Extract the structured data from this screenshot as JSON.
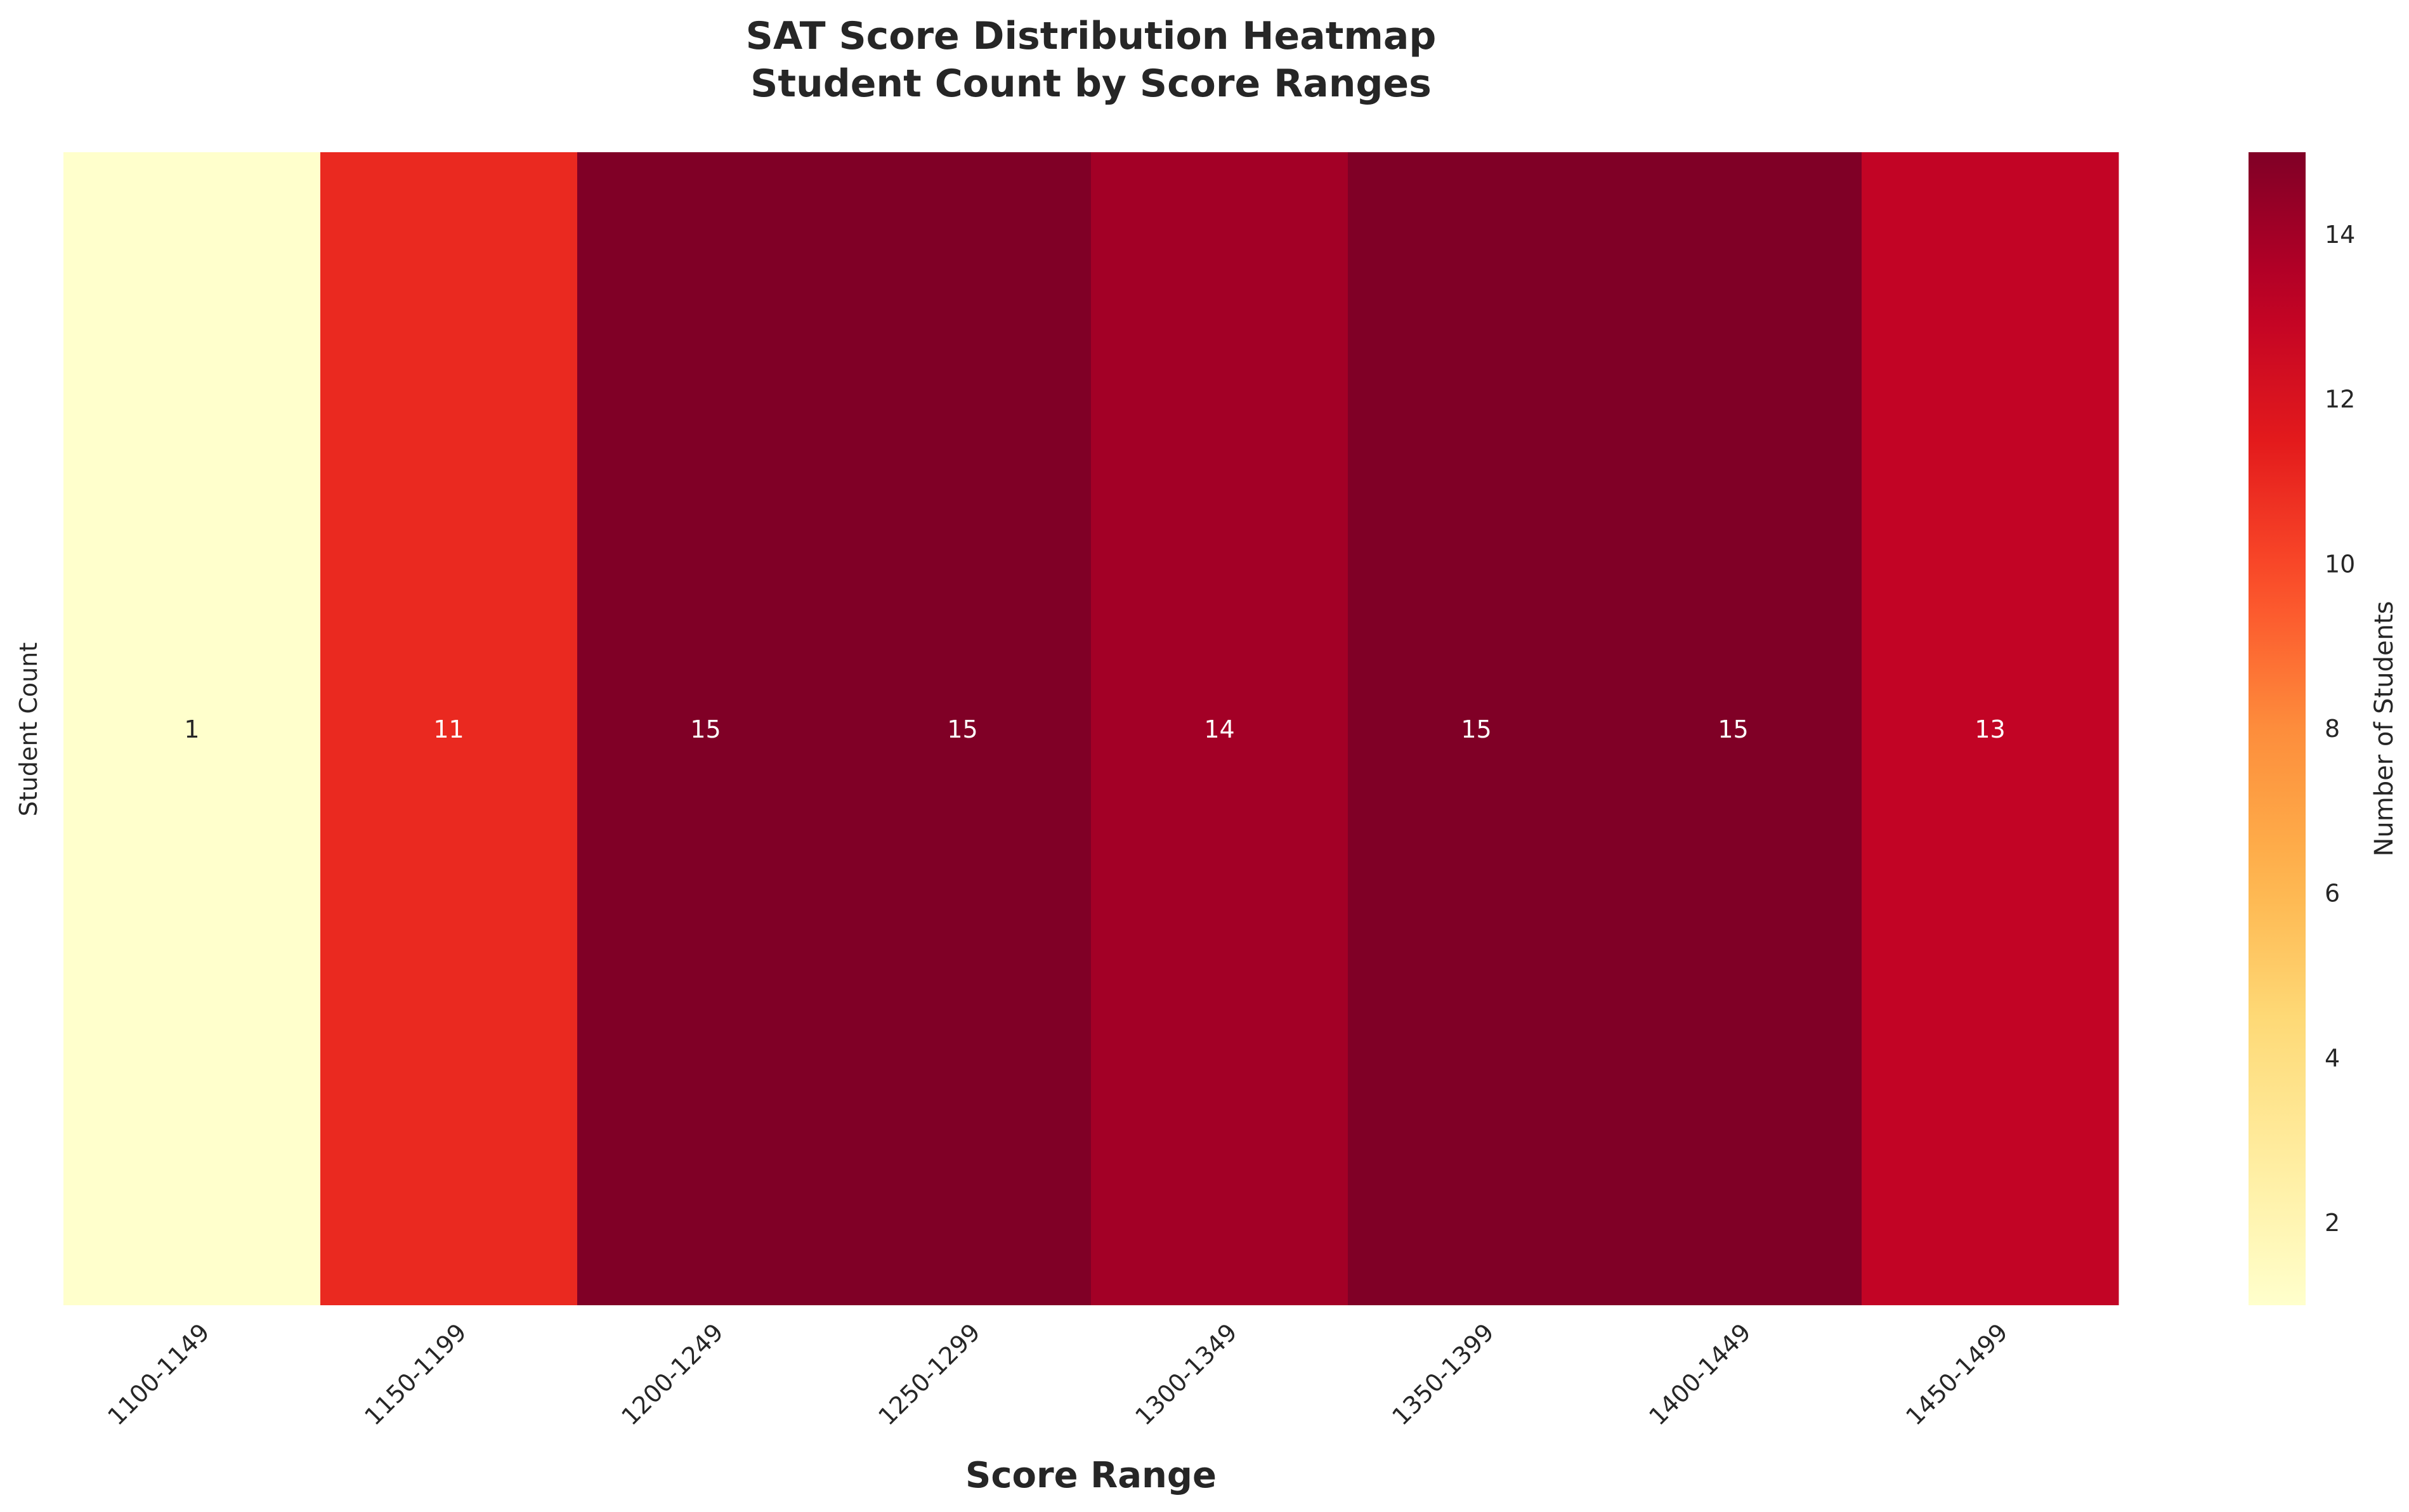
{
  "chart_data": {
    "type": "heatmap",
    "title_line1": "SAT Score Distribution Heatmap",
    "title_line2": "Student Count by Score Ranges",
    "xlabel": "Score Range",
    "ylabel": "Student Count",
    "colorbar_label": "Number of Students",
    "colormap": "YlOrRd",
    "value_range": [
      1,
      15
    ],
    "colorbar_ticks": [
      2,
      4,
      6,
      8,
      10,
      12,
      14
    ],
    "grid": false,
    "legend": "colorbar-right",
    "categories": [
      "1100-1149",
      "1150-1199",
      "1200-1249",
      "1250-1299",
      "1300-1349",
      "1350-1399",
      "1400-1449",
      "1450-1499"
    ],
    "values": [
      1,
      11,
      15,
      15,
      14,
      15,
      15,
      13
    ],
    "colors": {
      "low": "#ffffcc",
      "high": "#800026",
      "annotation_light": "#ffffff",
      "annotation_dark": "#262626"
    }
  }
}
